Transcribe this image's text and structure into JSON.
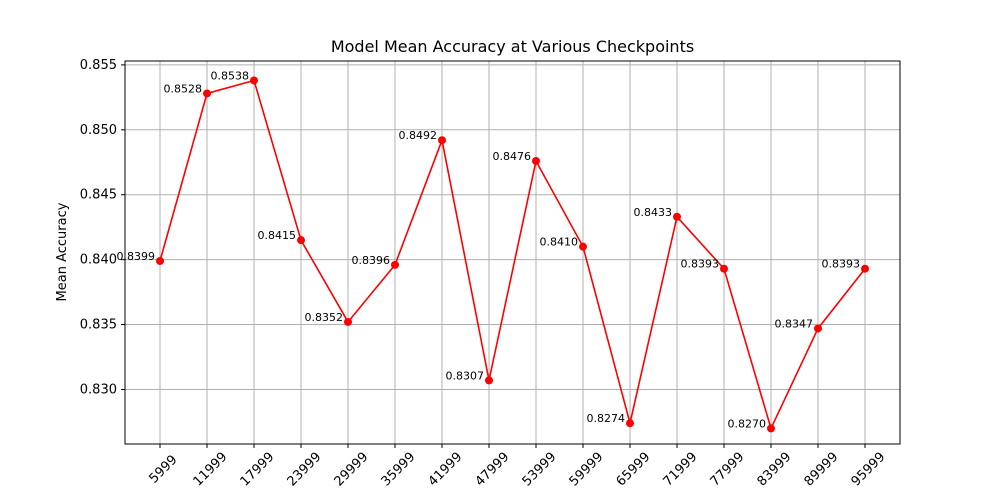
{
  "chart_data": {
    "type": "line",
    "title": "Model Mean Accuracy at Various Checkpoints",
    "xlabel": "",
    "ylabel": "Mean Accuracy",
    "categories": [
      "5999",
      "11999",
      "17999",
      "23999",
      "29999",
      "35999",
      "41999",
      "47999",
      "53999",
      "59999",
      "65999",
      "71999",
      "77999",
      "83999",
      "89999",
      "95999"
    ],
    "series": [
      {
        "values": [
          0.8399,
          0.8528,
          0.8538,
          0.8415,
          0.8352,
          0.8396,
          0.8492,
          0.8307,
          0.8476,
          0.841,
          0.8274,
          0.8433,
          0.8393,
          0.827,
          0.8347,
          0.8393
        ],
        "labels": [
          "0.8399",
          "0.8528",
          "0.8538",
          "0.8415",
          "0.8352",
          "0.8396",
          "0.8492",
          "0.8307",
          "0.8476",
          "0.8410",
          "0.8274",
          "0.8433",
          "0.8393",
          "0.8270",
          "0.8347",
          "0.8393"
        ],
        "color": "#ff0000",
        "marker": "circle"
      }
    ],
    "ylim": [
      0.8258,
      0.8553
    ],
    "yticks": [
      0.83,
      0.835,
      0.84,
      0.845,
      0.85,
      0.855
    ],
    "ytick_labels": [
      "0.830",
      "0.835",
      "0.840",
      "0.845",
      "0.850",
      "0.855"
    ],
    "grid": true,
    "legend": "none"
  }
}
